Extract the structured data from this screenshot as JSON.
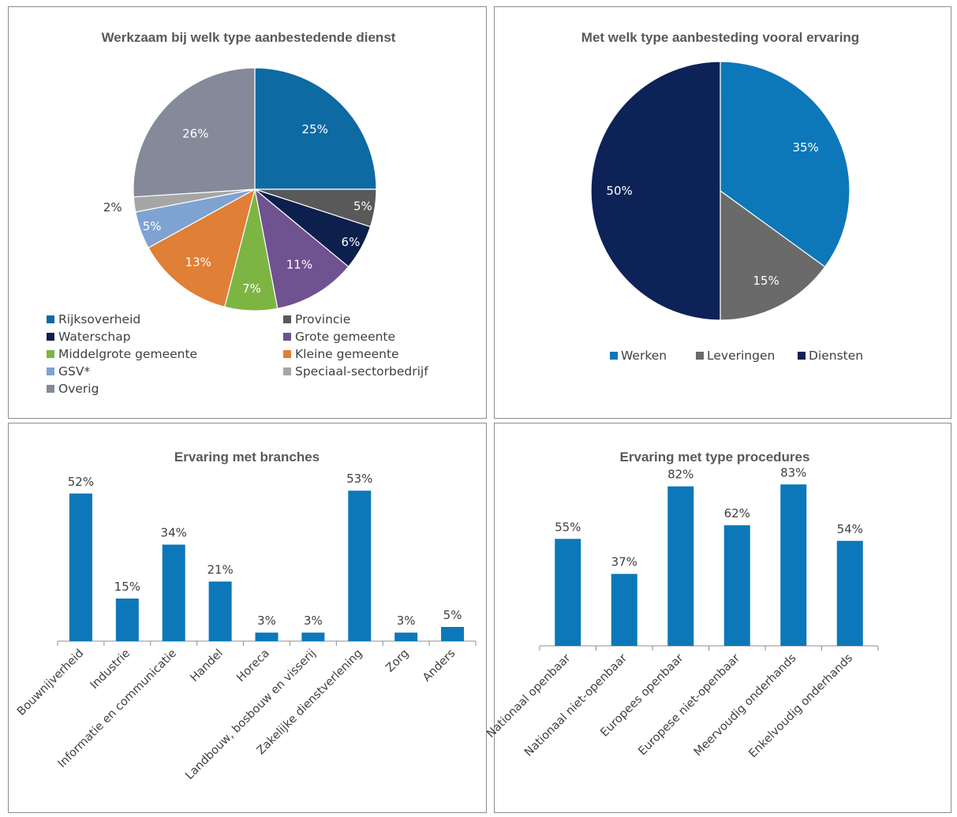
{
  "chart_data": [
    {
      "type": "pie",
      "title": "Werkzaam bij welk type aanbestedende dienst",
      "categories": [
        "Rijksoverheid",
        "Provincie",
        "Waterschap",
        "Grote gemeente",
        "Middelgrote gemeente",
        "Kleine gemeente",
        "GSV*",
        "Speciaal-sectorbedrijf",
        "Overig"
      ],
      "values": [
        25,
        5,
        6,
        11,
        7,
        13,
        5,
        2,
        26
      ],
      "labels": [
        "25%",
        "5%",
        "6%",
        "11%",
        "7%",
        "13%",
        "5%",
        "2%",
        "26%"
      ],
      "colors": [
        "#0e6aa3",
        "#595959",
        "#0d1f4c",
        "#6f5290",
        "#7db543",
        "#e07f36",
        "#7fa3d1",
        "#a6a6a6",
        "#848a99"
      ],
      "legend_position": "bottom"
    },
    {
      "type": "pie",
      "title": "Met welk type aanbesteding vooral ervaring",
      "categories": [
        "Werken",
        "Leveringen",
        "Diensten"
      ],
      "values": [
        35,
        15,
        50
      ],
      "labels": [
        "35%",
        "15%",
        "50%"
      ],
      "colors": [
        "#0c78b9",
        "#6a6a6a",
        "#0d2257"
      ],
      "legend_position": "bottom"
    },
    {
      "type": "bar",
      "title": "Ervaring met branches",
      "categories": [
        "Bouwnijverheid",
        "Industrie",
        "Informatie en communicatie",
        "Handel",
        "Horeca",
        "Landbouw, bosbouw en visserij",
        "Zakelijke dienstverlening",
        "Zorg",
        "Anders"
      ],
      "values": [
        52,
        15,
        34,
        21,
        3,
        3,
        53,
        3,
        5
      ],
      "labels": [
        "52%",
        "15%",
        "34%",
        "21%",
        "3%",
        "3%",
        "53%",
        "3%",
        "5%"
      ],
      "color": "#0c78b9"
    },
    {
      "type": "bar",
      "title": "Ervaring met type procedures",
      "categories": [
        "Nationaal openbaar",
        "Nationaal niet-openbaar",
        "Europees openbaar",
        "Europese niet-openbaar",
        "Meervoudig onderhands",
        "Enkelvoudig onderhands"
      ],
      "values": [
        55,
        37,
        82,
        62,
        83,
        54
      ],
      "labels": [
        "55%",
        "37%",
        "82%",
        "62%",
        "83%",
        "54%"
      ],
      "color": "#0c78b9"
    }
  ]
}
